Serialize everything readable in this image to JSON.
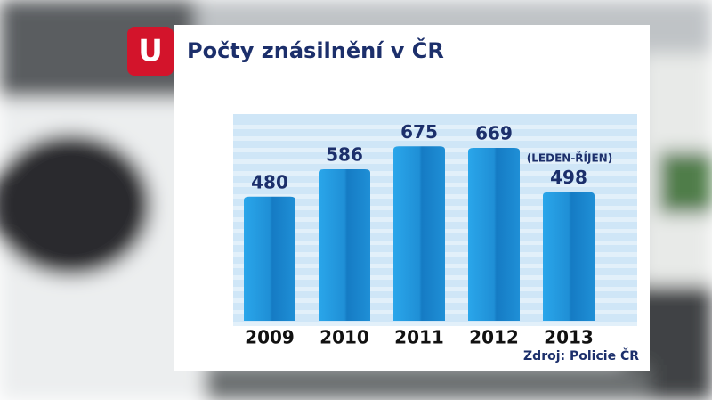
{
  "logo": "U",
  "chart_data": {
    "type": "bar",
    "title": "Počty znásilnění v ČR",
    "categories": [
      "2009",
      "2010",
      "2011",
      "2012",
      "2013"
    ],
    "values": [
      480,
      586,
      675,
      669,
      498
    ],
    "color": "#1f8fd6",
    "annotation": "(LEDEN-ŘÍJEN)",
    "source": "Zdroj: Policie ČR"
  }
}
